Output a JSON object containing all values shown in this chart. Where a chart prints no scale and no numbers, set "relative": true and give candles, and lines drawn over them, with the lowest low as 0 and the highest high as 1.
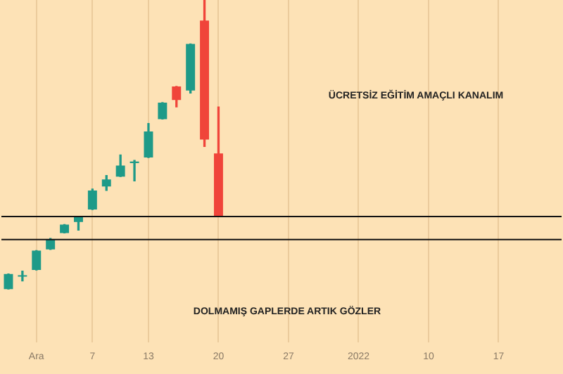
{
  "chart_data": {
    "type": "candlestick",
    "relative": true,
    "categories": [
      null,
      null,
      "Ara",
      null,
      null,
      null,
      "7",
      null,
      null,
      null,
      "13",
      null,
      null,
      null,
      null,
      "20",
      null,
      null,
      null,
      null,
      "27",
      null,
      null,
      null,
      null,
      "2022",
      null,
      null,
      null,
      null,
      "10",
      null,
      null,
      null,
      null,
      "17",
      null,
      null,
      null,
      null
    ],
    "ohlc": [
      [
        0,
        0.052,
        0,
        0.052
      ],
      [
        0.043,
        0.062,
        0.028,
        0.047
      ],
      [
        0.066,
        0.133,
        0.066,
        0.133
      ],
      [
        0.137,
        0.175,
        0.137,
        0.171
      ],
      [
        0.194,
        0.223,
        0.194,
        0.223
      ],
      [
        0.232,
        0.251,
        0.204,
        0.251
      ],
      [
        0.275,
        0.346,
        0.275,
        0.341
      ],
      [
        0.355,
        0.393,
        0.341,
        0.379
      ],
      [
        0.389,
        0.464,
        0.389,
        0.427
      ],
      [
        0.436,
        0.445,
        0.374,
        0.441
      ],
      [
        0.455,
        0.573,
        0.455,
        0.545
      ],
      [
        0.588,
        0.645,
        0.588,
        0.645
      ],
      [
        0.701,
        0.701,
        0.63,
        0.654
      ],
      [
        0.687,
        0.848,
        0.678,
        0.848
      ],
      [
        0.929,
        1,
        0.493,
        0.517
      ],
      [
        0.469,
        0.63,
        0.251,
        0.251
      ],
      null,
      null,
      null,
      null,
      null,
      null,
      null,
      null,
      null,
      null,
      null,
      null,
      null,
      null,
      null,
      null,
      null,
      null,
      null,
      null,
      null,
      null,
      null,
      null
    ],
    "colors": [
      "#1e9a88",
      "#1e9a88",
      "#1e9a88",
      "#1e9a88",
      "#1e9a88",
      "#1e9a88",
      "#1e9a88",
      "#1e9a88",
      "#1e9a88",
      "#1e9a88",
      "#1e9a88",
      "#1e9a88",
      "#f0443a",
      "#1e9a88",
      "#f0443a",
      "#f0443a",
      null,
      null,
      null,
      null,
      null,
      null,
      null,
      null,
      null,
      null,
      null,
      null,
      null,
      null,
      null,
      null,
      null,
      null,
      null,
      null,
      null,
      null,
      null,
      null
    ],
    "ref_lines": [
      {
        "axis": "y",
        "value": 0.251,
        "color": "#111111"
      },
      {
        "axis": "y",
        "value": 0.171,
        "color": "#111111"
      }
    ],
    "annotations": [
      "ÜCRETSİZ EĞİTİM AMAÇLI KANALIM",
      "DOLMAMIŞ GAPLERDE ARTIK GÖZLER"
    ],
    "grid": "x"
  }
}
